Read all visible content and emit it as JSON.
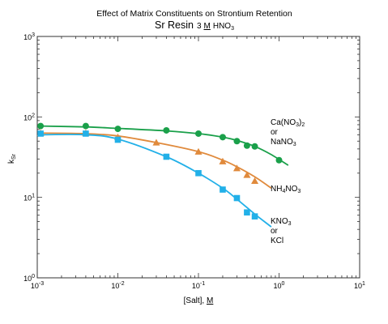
{
  "chart_data": {
    "type": "scatter",
    "title": "Effect of Matrix Constituents on Strontium Retention",
    "subtitle": {
      "resin": "Sr Resin",
      "acid_number": "3",
      "acid_unit": "M",
      "acid_main": "HNO",
      "acid_sub": "3"
    },
    "xlabel": {
      "main": "[Salt], ",
      "unit": "M"
    },
    "ylabel": {
      "main": "k",
      "sub": "Sr"
    },
    "x_scale": "log",
    "y_scale": "log",
    "xlim": [
      0.001,
      10
    ],
    "ylim": [
      1,
      1000
    ],
    "grid": false,
    "x_ticks": [
      {
        "base": "10",
        "exp": "-3"
      },
      {
        "base": "10",
        "exp": "-2"
      },
      {
        "base": "10",
        "exp": "-1"
      },
      {
        "base": "10",
        "exp": "0"
      },
      {
        "base": "10",
        "exp": "1"
      }
    ],
    "y_ticks": [
      {
        "base": "10",
        "exp": "0"
      },
      {
        "base": "10",
        "exp": "1"
      },
      {
        "base": "10",
        "exp": "2"
      },
      {
        "base": "10",
        "exp": "3"
      }
    ],
    "series": [
      {
        "label_lines": [
          {
            "parts": [
              [
                "Ca(NO",
                "n"
              ],
              [
                "3",
                "sub"
              ],
              [
                ")",
                "n"
              ],
              [
                "2",
                "sub"
              ]
            ]
          },
          {
            "parts": [
              [
                "or",
                "n"
              ]
            ]
          },
          {
            "parts": [
              [
                "NaNO",
                "n"
              ],
              [
                "3",
                "sub"
              ]
            ]
          }
        ],
        "marker": "circle",
        "color": "#1aa04a",
        "points": [
          [
            0.0011,
            77
          ],
          [
            0.004,
            77
          ],
          [
            0.01,
            71
          ],
          [
            0.04,
            68
          ],
          [
            0.1,
            62
          ],
          [
            0.2,
            56
          ],
          [
            0.3,
            50
          ],
          [
            0.4,
            44
          ],
          [
            0.5,
            43
          ],
          [
            1.0,
            29
          ]
        ],
        "fit": [
          [
            0.0011,
            77
          ],
          [
            0.004,
            75
          ],
          [
            0.01,
            72
          ],
          [
            0.04,
            67
          ],
          [
            0.1,
            62
          ],
          [
            0.2,
            56
          ],
          [
            0.3,
            51
          ],
          [
            0.5,
            43
          ],
          [
            0.8,
            34
          ],
          [
            1.3,
            25
          ]
        ]
      },
      {
        "label_lines": [
          {
            "parts": [
              [
                "NH",
                "n"
              ],
              [
                "4",
                "sub"
              ],
              [
                "NO",
                "n"
              ],
              [
                "3",
                "sub"
              ]
            ]
          }
        ],
        "marker": "triangle",
        "color": "#e08a3c",
        "points": [
          [
            0.0011,
            63
          ],
          [
            0.004,
            63
          ],
          [
            0.01,
            56
          ],
          [
            0.03,
            48
          ],
          [
            0.1,
            37
          ],
          [
            0.2,
            28
          ],
          [
            0.3,
            23
          ],
          [
            0.4,
            19
          ],
          [
            0.5,
            16
          ]
        ],
        "fit": [
          [
            0.0011,
            63
          ],
          [
            0.004,
            62
          ],
          [
            0.01,
            58
          ],
          [
            0.03,
            48
          ],
          [
            0.1,
            37
          ],
          [
            0.2,
            29
          ],
          [
            0.3,
            24
          ],
          [
            0.5,
            18
          ],
          [
            0.8,
            13
          ]
        ]
      },
      {
        "label_lines": [
          {
            "parts": [
              [
                "KNO",
                "n"
              ],
              [
                "3",
                "sub"
              ]
            ]
          },
          {
            "parts": [
              [
                "or",
                "n"
              ]
            ]
          },
          {
            "parts": [
              [
                "KCl",
                "n"
              ]
            ]
          }
        ],
        "marker": "square",
        "color": "#22b0e8",
        "points": [
          [
            0.0011,
            62
          ],
          [
            0.004,
            62
          ],
          [
            0.01,
            52
          ],
          [
            0.04,
            32
          ],
          [
            0.1,
            20
          ],
          [
            0.2,
            12.5
          ],
          [
            0.3,
            9.8
          ],
          [
            0.4,
            6.5
          ],
          [
            0.5,
            5.8
          ]
        ],
        "fit": [
          [
            0.0011,
            60
          ],
          [
            0.004,
            60
          ],
          [
            0.01,
            53
          ],
          [
            0.04,
            32
          ],
          [
            0.1,
            20
          ],
          [
            0.2,
            13
          ],
          [
            0.3,
            9.5
          ],
          [
            0.5,
            6.2
          ],
          [
            0.8,
            4.3
          ]
        ]
      }
    ]
  }
}
